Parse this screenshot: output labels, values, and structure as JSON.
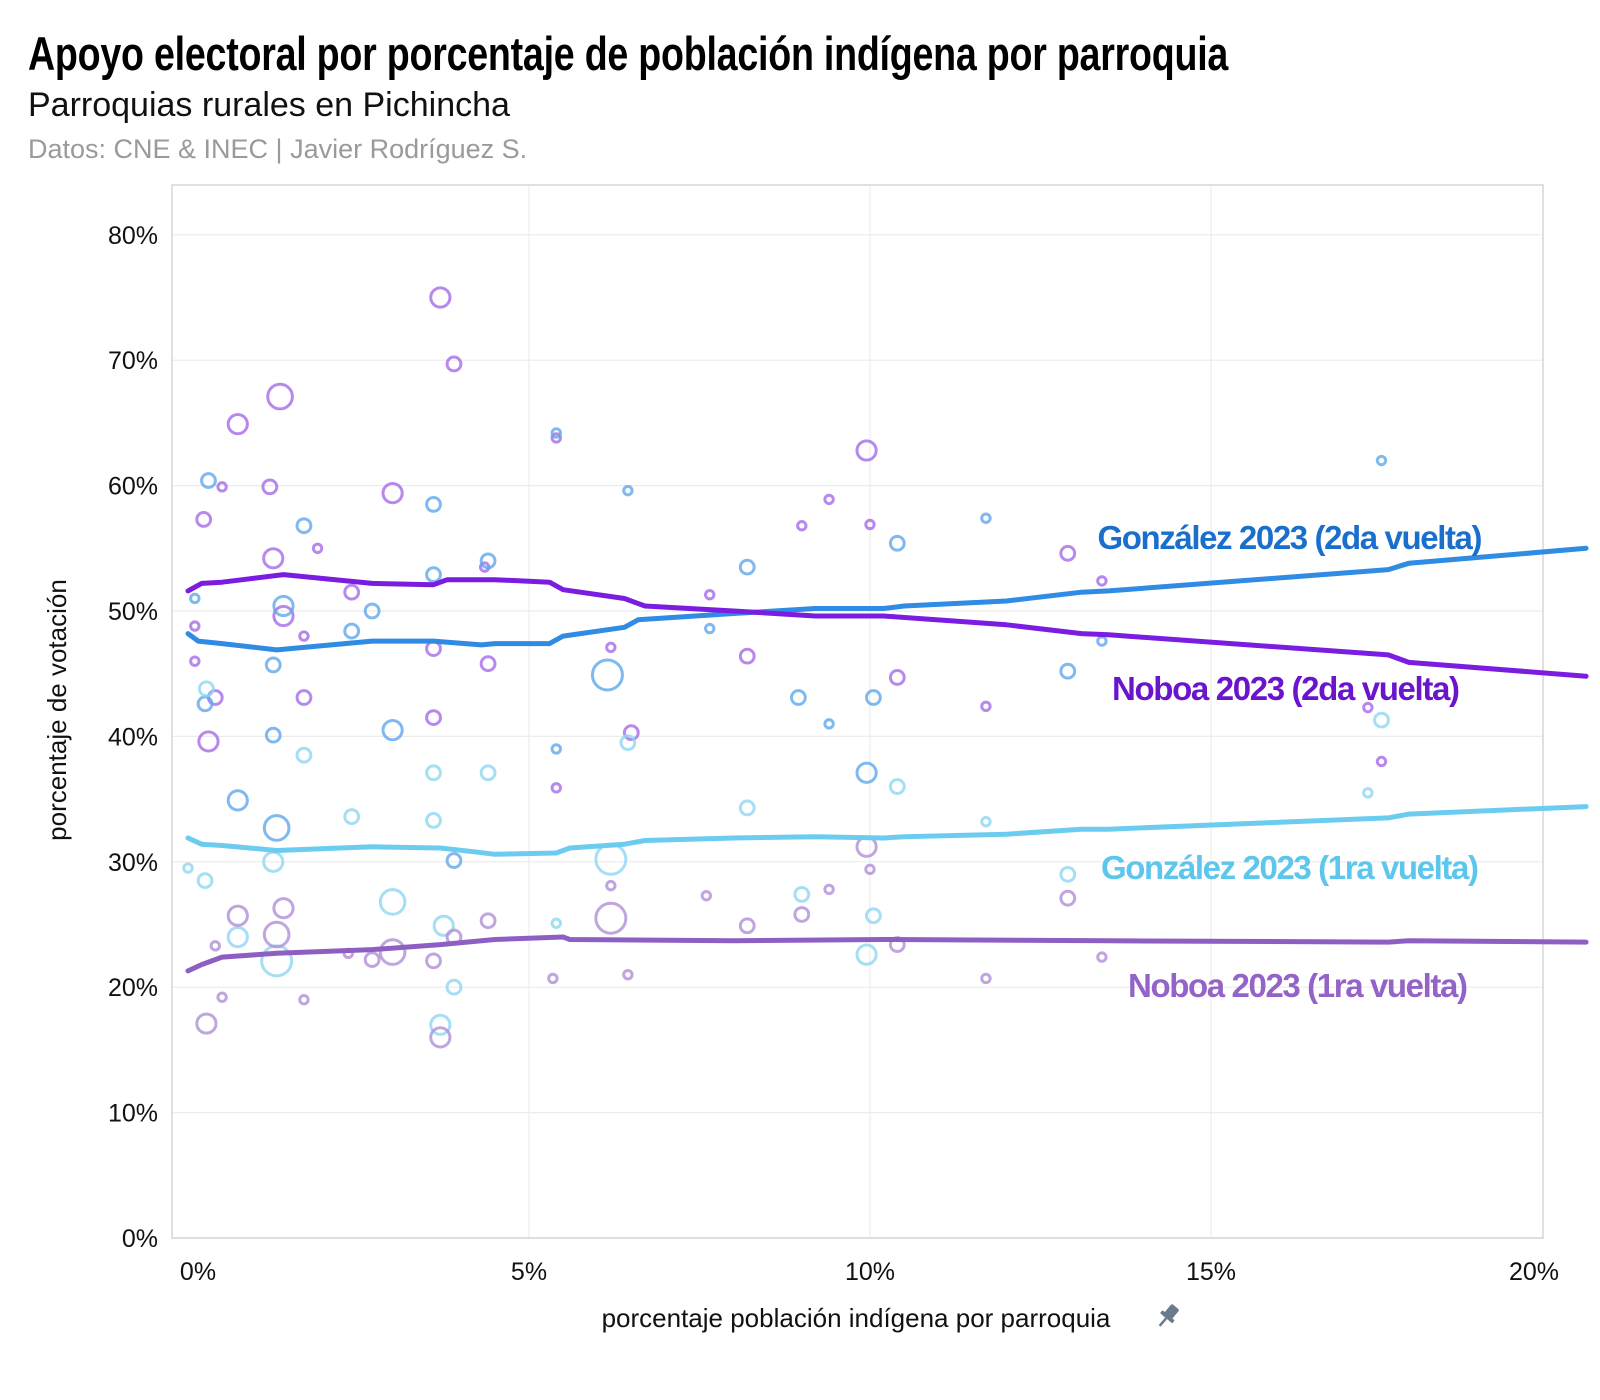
{
  "header": {
    "title": "Apoyo electoral por porcentaje de población indígena por parroquia",
    "subtitle": "Parroquias rurales en Pichincha",
    "source": "Datos: CNE & INEC | Javier Rodríguez S."
  },
  "chart_data": {
    "type": "line",
    "title": "Apoyo electoral por porcentaje de población indígena por parroquia",
    "subtitle": "Parroquias rurales en Pichincha",
    "xlabel": "porcentaje población indígena por parroquia",
    "ylabel": "porcentaje de votación",
    "xlim": [
      -0.2,
      20.5
    ],
    "ylim": [
      -1.5,
      82.5
    ],
    "xticks": [
      0,
      5,
      10,
      15,
      20
    ],
    "xtick_labels": [
      "0%",
      "5%",
      "10%",
      "15%",
      "20%"
    ],
    "yticks": [
      0,
      10,
      20,
      30,
      40,
      50,
      60,
      70,
      80
    ],
    "ytick_labels": [
      "0%",
      "10%",
      "20%",
      "30%",
      "40%",
      "50%",
      "60%",
      "70%",
      "80%"
    ],
    "grid": true,
    "xlabel_icon": "pin-icon",
    "series": [
      {
        "name": "González 2023 (2da vuelta)",
        "color": "#2f8be3",
        "point_color": "#5fa8ec",
        "label_color": "#1a6fcc",
        "line": [
          [
            0,
            48.2
          ],
          [
            0.15,
            47.6
          ],
          [
            0.5,
            47.4
          ],
          [
            1.3,
            46.9
          ],
          [
            2.7,
            47.6
          ],
          [
            3.6,
            47.6
          ],
          [
            4.3,
            47.3
          ],
          [
            4.5,
            47.4
          ],
          [
            5.3,
            47.4
          ],
          [
            5.5,
            48.0
          ],
          [
            6.4,
            48.7
          ],
          [
            6.6,
            49.3
          ],
          [
            8,
            49.8
          ],
          [
            9.2,
            50.2
          ],
          [
            10.2,
            50.2
          ],
          [
            10.5,
            50.4
          ],
          [
            12,
            50.8
          ],
          [
            13.1,
            51.5
          ],
          [
            13.5,
            51.6
          ],
          [
            17.6,
            53.3
          ],
          [
            17.9,
            53.8
          ],
          [
            20.5,
            55.0
          ]
        ],
        "points": [
          [
            0.3,
            60.4,
            2
          ],
          [
            3.6,
            58.5,
            2
          ],
          [
            5.4,
            64.2,
            1
          ],
          [
            6.45,
            59.6,
            1
          ],
          [
            17.5,
            62.0,
            1
          ],
          [
            1.7,
            56.8,
            2
          ],
          [
            4.4,
            54.0,
            2
          ],
          [
            3.6,
            52.9,
            2
          ],
          [
            8.2,
            53.5,
            2
          ],
          [
            10.4,
            55.4,
            2
          ],
          [
            11.7,
            57.4,
            1
          ],
          [
            1.4,
            50.4,
            3
          ],
          [
            2.7,
            50.0,
            2
          ],
          [
            2.4,
            48.4,
            2
          ],
          [
            0.25,
            42.6,
            2
          ],
          [
            1.25,
            45.7,
            2
          ],
          [
            1.25,
            40.1,
            2
          ],
          [
            3.0,
            40.5,
            3
          ],
          [
            0.73,
            34.9,
            3
          ],
          [
            5.4,
            39.0,
            1
          ],
          [
            8.95,
            43.1,
            2
          ],
          [
            10.05,
            43.1,
            2
          ],
          [
            12.9,
            45.2,
            2
          ],
          [
            7.65,
            48.6,
            1
          ],
          [
            9.4,
            41.0,
            1
          ],
          [
            6.15,
            44.9,
            5
          ],
          [
            9.95,
            37.1,
            3
          ],
          [
            1.3,
            32.7,
            4
          ],
          [
            3.9,
            30.1,
            2
          ],
          [
            0.1,
            51.0,
            1
          ],
          [
            13.4,
            47.6,
            1
          ]
        ]
      },
      {
        "name": "Noboa 2023 (2da vuelta)",
        "color": "#7a1de0",
        "point_color": "#a66ce8",
        "label_color": "#6a14cc",
        "line": [
          [
            0,
            51.6
          ],
          [
            0.2,
            52.2
          ],
          [
            0.5,
            52.3
          ],
          [
            1.4,
            52.9
          ],
          [
            2.7,
            52.2
          ],
          [
            3.6,
            52.1
          ],
          [
            3.8,
            52.5
          ],
          [
            4.5,
            52.5
          ],
          [
            5.3,
            52.3
          ],
          [
            5.5,
            51.7
          ],
          [
            6.4,
            51.0
          ],
          [
            6.7,
            50.4
          ],
          [
            8,
            50.0
          ],
          [
            9.2,
            49.6
          ],
          [
            10.2,
            49.6
          ],
          [
            12,
            48.9
          ],
          [
            13.1,
            48.2
          ],
          [
            13.5,
            48.1
          ],
          [
            17.6,
            46.5
          ],
          [
            17.9,
            45.9
          ],
          [
            20.5,
            44.8
          ]
        ],
        "points": [
          [
            3.7,
            75.0,
            3
          ],
          [
            3.9,
            69.7,
            2
          ],
          [
            1.35,
            67.1,
            4
          ],
          [
            0.73,
            64.9,
            3
          ],
          [
            1.2,
            59.9,
            2
          ],
          [
            3.0,
            59.4,
            3
          ],
          [
            5.4,
            63.8,
            1
          ],
          [
            9.95,
            62.8,
            3
          ],
          [
            0.23,
            57.3,
            2
          ],
          [
            0.5,
            59.9,
            1
          ],
          [
            1.9,
            55.0,
            1
          ],
          [
            1.25,
            54.2,
            3
          ],
          [
            9.4,
            58.9,
            1
          ],
          [
            10.0,
            56.9,
            1
          ],
          [
            9.0,
            56.8,
            1
          ],
          [
            12.9,
            54.6,
            2
          ],
          [
            13.4,
            52.4,
            1
          ],
          [
            2.4,
            51.5,
            2
          ],
          [
            1.4,
            49.6,
            3
          ],
          [
            1.7,
            48.0,
            1
          ],
          [
            0.1,
            48.8,
            1
          ],
          [
            3.6,
            47.0,
            2
          ],
          [
            4.4,
            45.8,
            2
          ],
          [
            5.4,
            35.9,
            1
          ],
          [
            0.1,
            46.0,
            1
          ],
          [
            0.4,
            43.1,
            2
          ],
          [
            1.7,
            43.1,
            2
          ],
          [
            0.3,
            39.6,
            3
          ],
          [
            3.6,
            41.5,
            2
          ],
          [
            6.2,
            47.1,
            1
          ],
          [
            6.5,
            40.3,
            2
          ],
          [
            8.2,
            46.4,
            2
          ],
          [
            10.4,
            44.7,
            2
          ],
          [
            11.7,
            42.4,
            1
          ],
          [
            17.3,
            42.3,
            1
          ],
          [
            17.5,
            38.0,
            1
          ],
          [
            7.65,
            51.3,
            1
          ],
          [
            4.35,
            53.5,
            1
          ]
        ]
      },
      {
        "name": "González 2023 (1ra vuelta)",
        "color": "#6cccef",
        "point_color": "#8fd6f2",
        "label_color": "#5cc6ec",
        "line": [
          [
            0,
            31.9
          ],
          [
            0.2,
            31.4
          ],
          [
            0.5,
            31.3
          ],
          [
            1.3,
            30.9
          ],
          [
            2.7,
            31.2
          ],
          [
            3.7,
            31.1
          ],
          [
            4.2,
            30.8
          ],
          [
            4.5,
            30.6
          ],
          [
            5.4,
            30.7
          ],
          [
            5.6,
            31.1
          ],
          [
            6.4,
            31.4
          ],
          [
            6.7,
            31.7
          ],
          [
            8,
            31.9
          ],
          [
            9.2,
            32.0
          ],
          [
            10.2,
            31.9
          ],
          [
            10.5,
            32.0
          ],
          [
            12,
            32.2
          ],
          [
            13.1,
            32.6
          ],
          [
            13.5,
            32.6
          ],
          [
            17.6,
            33.5
          ],
          [
            17.9,
            33.8
          ],
          [
            20.5,
            34.4
          ]
        ],
        "points": [
          [
            0.27,
            43.8,
            2
          ],
          [
            1.7,
            38.5,
            2
          ],
          [
            3.6,
            37.1,
            2
          ],
          [
            4.4,
            37.1,
            2
          ],
          [
            6.45,
            39.5,
            2
          ],
          [
            3.0,
            26.8,
            4
          ],
          [
            2.4,
            33.6,
            2
          ],
          [
            3.6,
            33.3,
            2
          ],
          [
            8.2,
            34.3,
            2
          ],
          [
            10.4,
            36.0,
            2
          ],
          [
            1.25,
            30.0,
            3
          ],
          [
            6.2,
            30.2,
            5
          ],
          [
            0.73,
            24.0,
            3
          ],
          [
            1.3,
            22.1,
            5
          ],
          [
            3.75,
            24.9,
            3
          ],
          [
            3.9,
            20.0,
            2
          ],
          [
            3.7,
            17.0,
            3
          ],
          [
            9.95,
            22.6,
            3
          ],
          [
            12.9,
            29.0,
            2
          ],
          [
            9.0,
            27.4,
            2
          ],
          [
            10.05,
            25.7,
            2
          ],
          [
            17.3,
            35.5,
            1
          ],
          [
            17.5,
            41.3,
            2
          ],
          [
            0.25,
            28.5,
            2
          ],
          [
            11.7,
            33.2,
            1
          ],
          [
            0,
            29.5,
            1
          ],
          [
            5.4,
            25.1,
            1
          ]
        ]
      },
      {
        "name": "Noboa 2023 (1ra vuelta)",
        "color": "#8e5fc2",
        "point_color": "#b08fd8",
        "label_color": "#9363c8",
        "line": [
          [
            0,
            21.3
          ],
          [
            0.2,
            21.8
          ],
          [
            0.5,
            22.4
          ],
          [
            1.3,
            22.7
          ],
          [
            2.7,
            23.0
          ],
          [
            3.7,
            23.4
          ],
          [
            4.5,
            23.8
          ],
          [
            5.5,
            24.0
          ],
          [
            5.6,
            23.8
          ],
          [
            8,
            23.7
          ],
          [
            10.2,
            23.8
          ],
          [
            13.5,
            23.7
          ],
          [
            17.6,
            23.6
          ],
          [
            17.9,
            23.7
          ],
          [
            20.5,
            23.6
          ]
        ],
        "points": [
          [
            0.73,
            25.7,
            3
          ],
          [
            1.3,
            24.2,
            4
          ],
          [
            1.4,
            26.3,
            3
          ],
          [
            3.0,
            22.8,
            4
          ],
          [
            3.6,
            22.1,
            2
          ],
          [
            3.9,
            24.0,
            2
          ],
          [
            3.7,
            16.0,
            3
          ],
          [
            0.27,
            17.1,
            3
          ],
          [
            6.2,
            25.5,
            5
          ],
          [
            6.2,
            28.1,
            1
          ],
          [
            8.2,
            24.9,
            2
          ],
          [
            9.0,
            25.8,
            2
          ],
          [
            9.95,
            31.2,
            3
          ],
          [
            10.0,
            29.4,
            1
          ],
          [
            10.4,
            23.4,
            2
          ],
          [
            12.9,
            27.1,
            2
          ],
          [
            13.4,
            22.4,
            1
          ],
          [
            2.35,
            22.7,
            1
          ],
          [
            2.7,
            22.2,
            2
          ],
          [
            4.4,
            25.3,
            2
          ],
          [
            6.45,
            21.0,
            1
          ],
          [
            11.7,
            20.7,
            1
          ],
          [
            7.6,
            27.3,
            1
          ],
          [
            9.4,
            27.8,
            1
          ],
          [
            0.4,
            23.3,
            1
          ],
          [
            1.7,
            19.0,
            1
          ],
          [
            0.5,
            19.2,
            1
          ],
          [
            5.35,
            20.7,
            1
          ]
        ]
      }
    ]
  }
}
